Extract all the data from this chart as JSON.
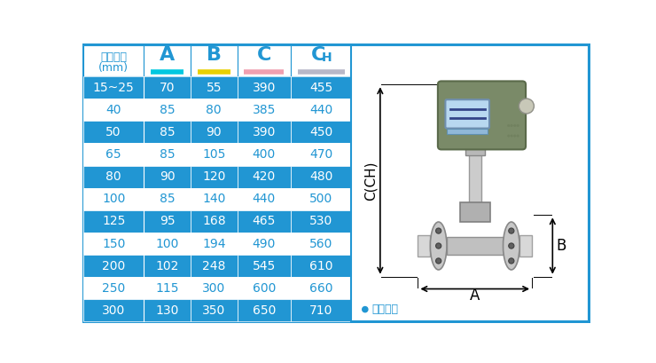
{
  "header_bg": "#2196d3",
  "header_text_color": "#2196d3",
  "header_col0_bg": "#ffffff",
  "row_bg_odd": "#2196d3",
  "row_bg_even": "#ffffff",
  "odd_text_color": "#ffffff",
  "even_text_color": "#2196d3",
  "col0_header_line1": "仪表口径",
  "col0_header_line2": "(mm)",
  "columns": [
    "A",
    "B",
    "C",
    "CH"
  ],
  "col_underline_colors": [
    "#00c8e0",
    "#e8d000",
    "#f0a0b0",
    "#b8b8c8"
  ],
  "rows": [
    [
      "15~25",
      "70",
      "55",
      "390",
      "455"
    ],
    [
      "40",
      "85",
      "80",
      "385",
      "440"
    ],
    [
      "50",
      "85",
      "90",
      "390",
      "450"
    ],
    [
      "65",
      "85",
      "105",
      "400",
      "470"
    ],
    [
      "80",
      "90",
      "120",
      "420",
      "480"
    ],
    [
      "100",
      "85",
      "140",
      "440",
      "500"
    ],
    [
      "125",
      "95",
      "168",
      "465",
      "530"
    ],
    [
      "150",
      "100",
      "194",
      "490",
      "560"
    ],
    [
      "200",
      "102",
      "248",
      "545",
      "610"
    ],
    [
      "250",
      "115",
      "300",
      "600",
      "660"
    ],
    [
      "300",
      "130",
      "350",
      "650",
      "710"
    ]
  ],
  "border_color": "#2196d3",
  "note_dot_color": "#2196d3",
  "note_text": "常规仪表",
  "note_text_color": "#2196d3",
  "dim_label_C": "C(CH)",
  "dim_label_A": "A",
  "dim_label_B": "B"
}
